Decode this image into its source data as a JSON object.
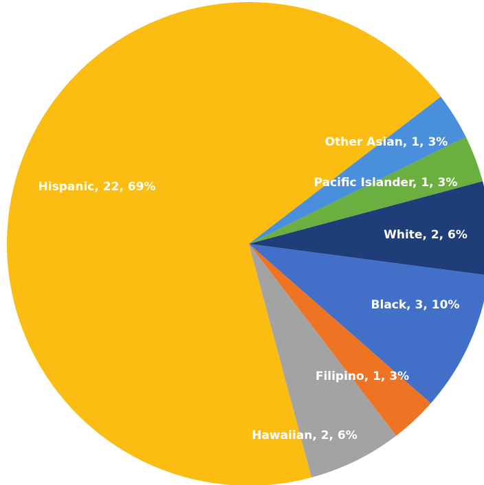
{
  "chart_data": {
    "type": "pie",
    "values": [
      22,
      1,
      1,
      2,
      3,
      1,
      2
    ],
    "value_labels": [
      "Hispanic, 22, 69%",
      "Other Asian, 1, 3%",
      "Pacific Islander, 1, 3%",
      "White, 2, 6%",
      "Black, 3, 10%",
      "Filipino, 1, 3%",
      "Hawaiian, 2, 6%"
    ],
    "colors": [
      "#fbbd12",
      "#4a8fdb",
      "#6aaf3f",
      "#1f3d78",
      "#4270c8",
      "#ee7424",
      "#a3a3a3"
    ]
  }
}
